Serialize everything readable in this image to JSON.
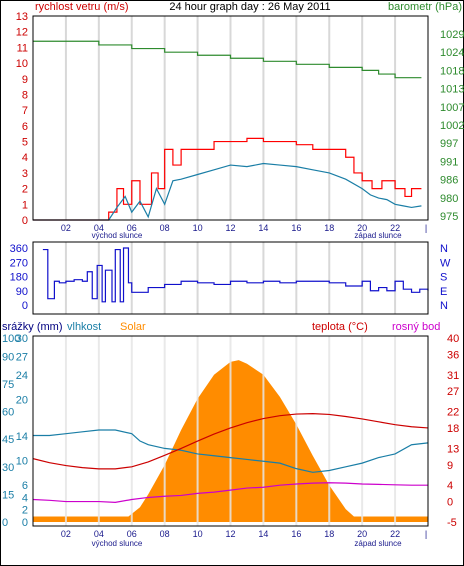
{
  "chart_data": [
    {
      "type": "line",
      "title": "24 hour graph day : 26 May 2011",
      "left_axis_label": "rychlost vetru (m/s)",
      "right_axis_label": "barometr (hPa)",
      "x_ticks": [
        "02",
        "04",
        "06",
        "08",
        "10",
        "12",
        "14",
        "16",
        "18",
        "20",
        "22"
      ],
      "x_end_label": "|",
      "sunrise_label": "východ slunce",
      "sunset_label": "západ slunce",
      "left_ticks": [
        0,
        1,
        2,
        3,
        4,
        5,
        6,
        7,
        8,
        9,
        10,
        11,
        12,
        13
      ],
      "right_ticks": [
        975,
        980,
        986,
        991,
        997,
        1002,
        1007,
        1013,
        1018,
        1024,
        1029
      ],
      "left_ylim": [
        0,
        13
      ],
      "x_range_hours": [
        0,
        24
      ],
      "series": [
        {
          "name": "rychlost vetru (m/s)",
          "axis": "left",
          "color": "#ff0000",
          "style": "step",
          "x": [
            0,
            4.6,
            5.1,
            5.5,
            6.0,
            6.5,
            7.2,
            7.6,
            8.0,
            8.5,
            9.0,
            10.0,
            11.0,
            12.0,
            13.0,
            14.0,
            15.0,
            16.0,
            17.0,
            18.0,
            19.0,
            19.5,
            20.0,
            20.6,
            21.2,
            22.0,
            22.6,
            23.0,
            23.6
          ],
          "y": [
            0,
            0.5,
            2.0,
            1.0,
            2.5,
            1.0,
            3.0,
            2.0,
            4.5,
            3.5,
            4.5,
            4.5,
            5.0,
            5.0,
            5.2,
            5.0,
            5.0,
            4.8,
            4.5,
            4.5,
            4.0,
            3.0,
            2.5,
            2.0,
            2.5,
            2.0,
            1.5,
            2.0,
            2.0
          ]
        },
        {
          "name": "wind average",
          "axis": "left",
          "color": "#1a7ea6",
          "style": "line",
          "x": [
            0,
            4.6,
            5.1,
            5.6,
            6.0,
            6.5,
            7.0,
            7.5,
            8.0,
            8.5,
            9.0,
            10.0,
            11.0,
            12.0,
            13.0,
            14.0,
            15.0,
            16.0,
            17.0,
            18.0,
            19.0,
            20.0,
            20.5,
            21.0,
            21.5,
            22.0,
            22.5,
            23.0,
            23.6
          ],
          "y": [
            0,
            0,
            0.8,
            1.5,
            0.5,
            1.2,
            0.2,
            2.0,
            1.0,
            2.5,
            2.6,
            2.9,
            3.2,
            3.5,
            3.4,
            3.6,
            3.5,
            3.4,
            3.2,
            3.0,
            2.6,
            2.0,
            1.6,
            1.4,
            1.3,
            1.0,
            0.9,
            0.8,
            0.9
          ]
        },
        {
          "name": "barometr (hPa)",
          "axis": "right",
          "color": "#2e8b2e",
          "style": "step",
          "x": [
            0,
            2.0,
            4.0,
            6.0,
            8.0,
            10.0,
            12.0,
            14.0,
            16.0,
            18.0,
            20.0,
            21.0,
            22.0,
            23.0,
            23.6
          ],
          "y": [
            1027,
            1027,
            1026,
            1025,
            1024,
            1023,
            1022,
            1021,
            1020,
            1019,
            1018,
            1017,
            1016,
            1016,
            1016
          ]
        }
      ]
    },
    {
      "type": "line",
      "left_ticks": [
        0,
        90,
        180,
        270,
        360
      ],
      "right_ticks": [
        "N",
        "W",
        "S",
        "E",
        "N"
      ],
      "ylim": [
        0,
        360
      ],
      "series": [
        {
          "name": "wind direction",
          "color": "#1010cc",
          "style": "step",
          "x": [
            0.6,
            0.9,
            1.3,
            1.6,
            2.0,
            2.5,
            3.0,
            3.3,
            3.6,
            3.9,
            4.2,
            4.4,
            4.8,
            5.0,
            5.3,
            5.5,
            5.8,
            6.0,
            7.0,
            8.0,
            9.0,
            10.0,
            11.0,
            12.0,
            13.0,
            14.0,
            15.0,
            16.0,
            17.0,
            18.0,
            19.0,
            20.0,
            20.5,
            21.0,
            21.5,
            22.0,
            22.5,
            23.0,
            23.5,
            24.0
          ],
          "y": [
            350,
            40,
            150,
            140,
            150,
            160,
            150,
            210,
            40,
            250,
            20,
            220,
            20,
            350,
            20,
            360,
            140,
            80,
            110,
            130,
            150,
            140,
            130,
            150,
            140,
            150,
            140,
            150,
            150,
            140,
            120,
            150,
            90,
            110,
            90,
            150,
            100,
            80,
            100,
            90
          ]
        }
      ]
    },
    {
      "type": "area",
      "legend": [
        {
          "label": "srážky (mm)",
          "color": "#000080"
        },
        {
          "label": "vlhkost",
          "color": "#1a7ea6"
        },
        {
          "label": "Solar",
          "color": "#ff8c00"
        },
        {
          "label": "teplota (°C)",
          "color": "#cc0000"
        },
        {
          "label": "rosný bod",
          "color": "#cc00cc"
        }
      ],
      "left_ticks_outer": [
        0,
        15,
        30,
        45,
        60,
        75,
        90,
        100
      ],
      "left_ticks_inner": [
        0,
        2,
        4,
        6,
        10,
        14,
        20,
        24,
        27,
        30
      ],
      "right_ticks": [
        -5,
        0,
        4,
        9,
        13,
        18,
        22,
        27,
        31,
        36,
        40
      ],
      "humidity_ylim": [
        0,
        100
      ],
      "temperature_ylim": [
        -5,
        40
      ],
      "series": [
        {
          "name": "Solar",
          "color": "#ff8c00",
          "style": "area",
          "ylim": [
            0,
            100
          ],
          "x": [
            0,
            5.8,
            6.5,
            7.0,
            8.0,
            9.0,
            10.0,
            11.0,
            12.0,
            12.5,
            13.0,
            14.0,
            15.0,
            16.0,
            17.0,
            18.0,
            19.0,
            19.5,
            20.0,
            24.0
          ],
          "y": [
            3,
            3,
            8,
            15,
            31,
            50,
            67,
            80,
            87,
            88,
            86,
            80,
            68,
            53,
            36,
            20,
            7,
            3,
            3,
            3
          ]
        },
        {
          "name": "vlhkost",
          "color": "#1a7ea6",
          "style": "line",
          "x": [
            0,
            1.0,
            2.0,
            3.0,
            4.0,
            5.0,
            6.0,
            6.5,
            7.0,
            8.0,
            9.0,
            10.0,
            11.0,
            12.0,
            13.0,
            14.0,
            15.0,
            16.0,
            17.0,
            18.0,
            19.0,
            20.0,
            21.0,
            22.0,
            23.0,
            24.0
          ],
          "y": [
            47,
            47,
            48,
            49,
            50,
            50,
            48,
            44,
            42,
            40,
            39,
            37,
            36,
            35,
            34,
            33,
            32,
            29,
            27,
            28,
            30,
            32,
            35,
            37,
            42,
            43
          ]
        },
        {
          "name": "teplota (°C)",
          "color": "#cc0000",
          "style": "line",
          "x": [
            0,
            1.0,
            2.0,
            3.0,
            4.0,
            5.0,
            6.0,
            7.0,
            8.0,
            9.0,
            10.0,
            11.0,
            12.0,
            13.0,
            14.0,
            15.0,
            16.0,
            17.0,
            18.0,
            19.0,
            20.0,
            21.0,
            22.0,
            23.0,
            24.0
          ],
          "y": [
            10.5,
            9.5,
            8.8,
            8.3,
            8.0,
            8.0,
            8.5,
            9.7,
            11.3,
            13.0,
            14.8,
            16.5,
            18.0,
            19.3,
            20.3,
            21.0,
            21.4,
            21.5,
            21.3,
            20.8,
            20.2,
            19.5,
            18.8,
            18.3,
            18.0
          ]
        },
        {
          "name": "rosný bod",
          "color": "#cc00cc",
          "style": "line",
          "x": [
            0,
            1.0,
            2.0,
            3.0,
            4.0,
            5.0,
            6.0,
            7.0,
            8.0,
            9.0,
            10.0,
            11.0,
            12.0,
            13.0,
            14.0,
            15.0,
            16.0,
            17.0,
            18.0,
            19.0,
            20.0,
            21.0,
            22.0,
            23.0,
            24.0
          ],
          "y": [
            0.5,
            0.3,
            0.0,
            0.0,
            0.0,
            -0.2,
            0.5,
            1.0,
            1.3,
            1.5,
            2.0,
            2.3,
            2.8,
            3.3,
            3.5,
            4.0,
            4.3,
            4.5,
            4.6,
            4.5,
            4.3,
            4.2,
            4.1,
            4.0,
            4.0
          ]
        }
      ]
    }
  ]
}
